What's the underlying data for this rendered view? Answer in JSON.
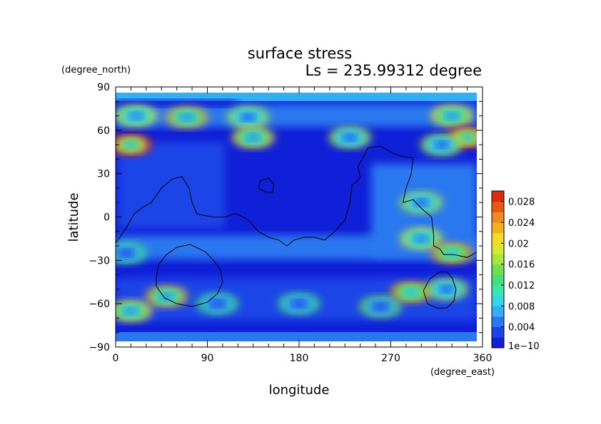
{
  "chart_data": {
    "type": "heatmap",
    "title": "surface stress",
    "subtitle": "Ls = 235.99312 degree",
    "xlabel": "longitude",
    "ylabel": "latitude",
    "x_unit": "(degree_east)",
    "y_unit": "(degree_north)",
    "xlim": [
      0,
      360
    ],
    "ylim": [
      -90,
      90
    ],
    "x_ticks": [
      0,
      90,
      180,
      270,
      360
    ],
    "x_tick_labels": [
      "0",
      "90",
      "180",
      "270",
      "360"
    ],
    "y_ticks": [
      90,
      60,
      30,
      0,
      -30,
      -60,
      -90
    ],
    "y_tick_labels": [
      "90",
      "60",
      "30",
      "0",
      "−30",
      "−60",
      "−90"
    ],
    "colorbar": {
      "min": 0,
      "max": 0.03,
      "tick_values": [
        0,
        0.004,
        0.008,
        0.012,
        0.016,
        0.02,
        0.024,
        0.028
      ],
      "tick_labels": [
        "1e−10",
        "0.004",
        "0.008",
        "0.012",
        "0.016",
        "0.02",
        "0.024",
        "0.028"
      ],
      "colors": [
        "#1020d8",
        "#1a44e8",
        "#2a78f0",
        "#33b0f5",
        "#33d6e8",
        "#35e8b0",
        "#44e07a",
        "#6ee050",
        "#a8e63a",
        "#d8e830",
        "#f5d828",
        "#f5b020",
        "#f08a1a",
        "#e85a14",
        "#e02a10"
      ]
    },
    "hotspots": [
      {
        "lon": 70,
        "lat": 69,
        "value": 0.018
      },
      {
        "lon": 20,
        "lat": 70,
        "value": 0.014
      },
      {
        "lon": 130,
        "lat": 69,
        "value": 0.012
      },
      {
        "lon": 330,
        "lat": 70,
        "value": 0.016
      },
      {
        "lon": 15,
        "lat": 50,
        "value": 0.026
      },
      {
        "lon": 345,
        "lat": 55,
        "value": 0.025
      },
      {
        "lon": 135,
        "lat": 55,
        "value": 0.016
      },
      {
        "lon": 230,
        "lat": 55,
        "value": 0.012
      },
      {
        "lon": 320,
        "lat": 50,
        "value": 0.012
      },
      {
        "lon": 300,
        "lat": 10,
        "value": 0.012
      },
      {
        "lon": 300,
        "lat": -15,
        "value": 0.014
      },
      {
        "lon": 330,
        "lat": -25,
        "value": 0.02
      },
      {
        "lon": 10,
        "lat": -25,
        "value": 0.008
      },
      {
        "lon": 50,
        "lat": -55,
        "value": 0.018
      },
      {
        "lon": 15,
        "lat": -65,
        "value": 0.016
      },
      {
        "lon": 290,
        "lat": -52,
        "value": 0.02
      },
      {
        "lon": 325,
        "lat": -50,
        "value": 0.012
      },
      {
        "lon": 260,
        "lat": -62,
        "value": 0.01
      },
      {
        "lon": 180,
        "lat": -60,
        "value": 0.008
      },
      {
        "lon": 100,
        "lat": -60,
        "value": 0.008
      }
    ],
    "contours": [
      [
        [
          0,
          -18
        ],
        [
          10,
          -8
        ],
        [
          18,
          2
        ],
        [
          27,
          7
        ],
        [
          35,
          10
        ],
        [
          45,
          20
        ],
        [
          55,
          26
        ],
        [
          65,
          28
        ],
        [
          72,
          20
        ],
        [
          75,
          10
        ],
        [
          80,
          2
        ],
        [
          95,
          0
        ],
        [
          108,
          0
        ],
        [
          115,
          2
        ],
        [
          120,
          2
        ],
        [
          130,
          -2
        ],
        [
          140,
          -10
        ],
        [
          150,
          -14
        ],
        [
          160,
          -16
        ],
        [
          168,
          -20
        ],
        [
          175,
          -16
        ],
        [
          185,
          -14
        ],
        [
          195,
          -14
        ],
        [
          205,
          -16
        ],
        [
          215,
          -10
        ],
        [
          225,
          -2
        ],
        [
          230,
          10
        ],
        [
          232,
          22
        ],
        [
          240,
          27
        ],
        [
          238,
          35
        ],
        [
          248,
          48
        ],
        [
          260,
          49
        ],
        [
          270,
          45
        ],
        [
          280,
          42
        ],
        [
          292,
          41
        ],
        [
          290,
          30
        ],
        [
          285,
          20
        ],
        [
          282,
          10
        ],
        [
          292,
          12
        ],
        [
          300,
          6
        ],
        [
          310,
          0
        ],
        [
          312,
          -12
        ],
        [
          312,
          -20
        ],
        [
          318,
          -22
        ],
        [
          322,
          -26
        ],
        [
          332,
          -26
        ],
        [
          345,
          -28
        ],
        [
          355,
          -24
        ],
        [
          360,
          -20
        ]
      ],
      [
        [
          140,
          20
        ],
        [
          142,
          25
        ],
        [
          150,
          27
        ],
        [
          155,
          23
        ],
        [
          154,
          17
        ],
        [
          148,
          17
        ],
        [
          140,
          20
        ]
      ],
      [
        [
          40,
          -42
        ],
        [
          42,
          -33
        ],
        [
          50,
          -26
        ],
        [
          60,
          -21
        ],
        [
          73,
          -19
        ],
        [
          88,
          -24
        ],
        [
          96,
          -30
        ],
        [
          103,
          -37
        ],
        [
          105,
          -45
        ],
        [
          100,
          -53
        ],
        [
          90,
          -59
        ],
        [
          75,
          -62
        ],
        [
          60,
          -60
        ],
        [
          48,
          -56
        ],
        [
          40,
          -48
        ],
        [
          40,
          -42
        ]
      ],
      [
        [
          302,
          -51
        ],
        [
          308,
          -43
        ],
        [
          318,
          -38
        ],
        [
          325,
          -38
        ],
        [
          330,
          -42
        ],
        [
          334,
          -50
        ],
        [
          332,
          -58
        ],
        [
          325,
          -63
        ],
        [
          315,
          -63
        ],
        [
          306,
          -60
        ],
        [
          302,
          -51
        ]
      ]
    ]
  }
}
